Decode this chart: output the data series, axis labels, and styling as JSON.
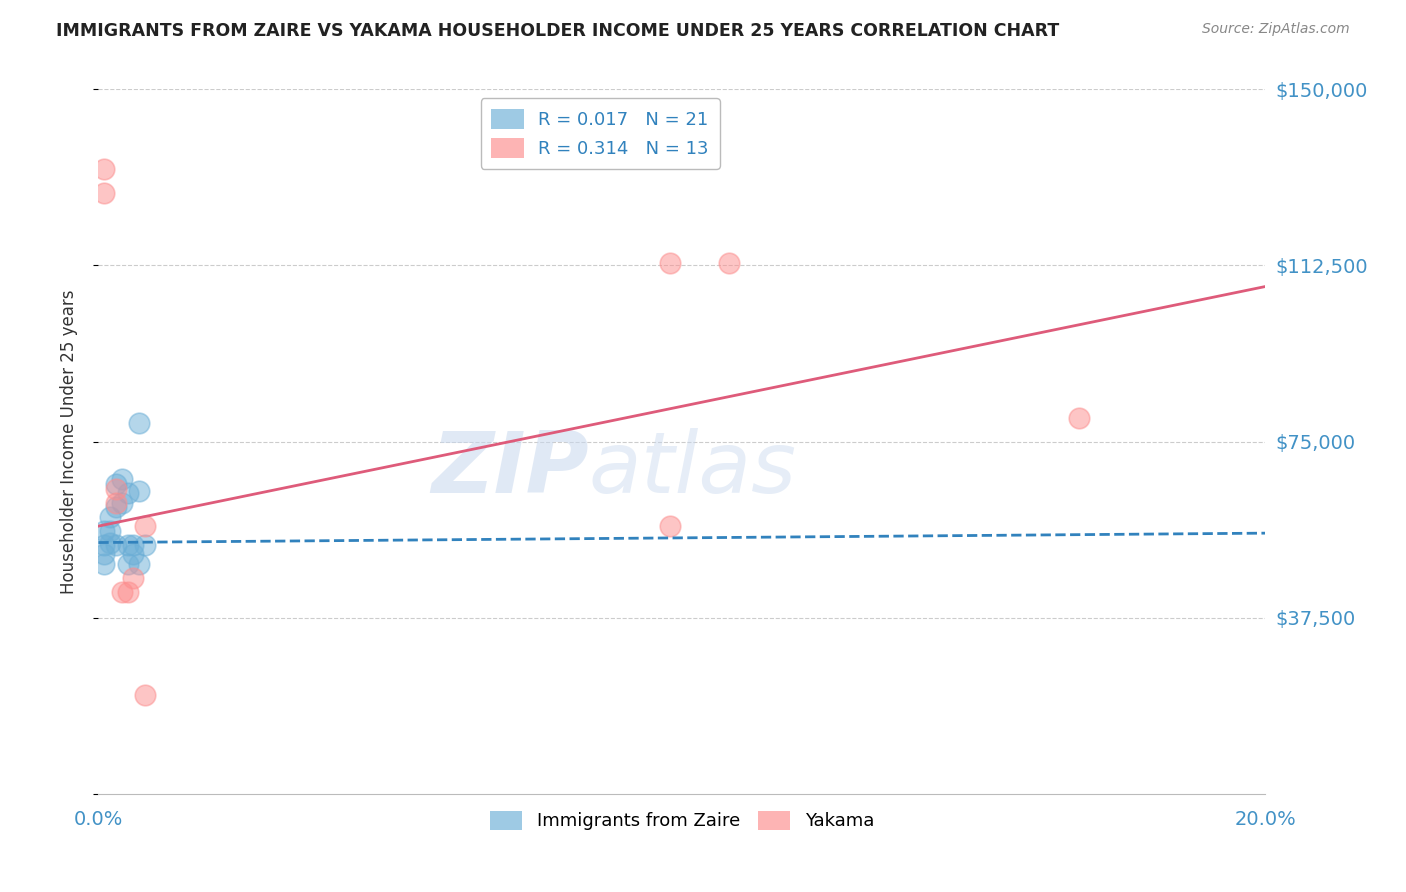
{
  "title": "IMMIGRANTS FROM ZAIRE VS YAKAMA HOUSEHOLDER INCOME UNDER 25 YEARS CORRELATION CHART",
  "source": "Source: ZipAtlas.com",
  "ylabel": "Householder Income Under 25 years",
  "xlim": [
    0.0,
    0.2
  ],
  "ylim": [
    0,
    150000
  ],
  "yticks": [
    0,
    37500,
    75000,
    112500,
    150000
  ],
  "ytick_labels": [
    "",
    "$37,500",
    "$75,000",
    "$112,500",
    "$150,000"
  ],
  "xtick_labels": [
    "0.0%",
    "20.0%"
  ],
  "xticks": [
    0.0,
    0.2
  ],
  "watermark_part1": "ZIP",
  "watermark_part2": "atlas",
  "legend_entries": [
    {
      "color": "#6baed6",
      "R": "0.017",
      "N": "21"
    },
    {
      "color": "#fc8d8d",
      "R": "0.314",
      "N": "13"
    }
  ],
  "legend_labels": [
    "Immigrants from Zaire",
    "Yakama"
  ],
  "zaire_points": [
    [
      0.001,
      53000
    ],
    [
      0.001,
      56000
    ],
    [
      0.001,
      49000
    ],
    [
      0.002,
      56000
    ],
    [
      0.001,
      51000
    ],
    [
      0.002,
      53500
    ],
    [
      0.002,
      59000
    ],
    [
      0.003,
      66000
    ],
    [
      0.003,
      61000
    ],
    [
      0.003,
      53000
    ],
    [
      0.004,
      67000
    ],
    [
      0.004,
      62000
    ],
    [
      0.005,
      64000
    ],
    [
      0.005,
      53000
    ],
    [
      0.005,
      49000
    ],
    [
      0.006,
      51000
    ],
    [
      0.006,
      53000
    ],
    [
      0.007,
      64500
    ],
    [
      0.007,
      49000
    ],
    [
      0.007,
      79000
    ],
    [
      0.008,
      53000
    ]
  ],
  "yakama_points": [
    [
      0.001,
      133000
    ],
    [
      0.001,
      128000
    ],
    [
      0.003,
      65000
    ],
    [
      0.003,
      62000
    ],
    [
      0.004,
      43000
    ],
    [
      0.005,
      43000
    ],
    [
      0.006,
      46000
    ],
    [
      0.008,
      57000
    ],
    [
      0.008,
      21000
    ],
    [
      0.098,
      113000
    ],
    [
      0.108,
      113000
    ],
    [
      0.098,
      57000
    ],
    [
      0.168,
      80000
    ]
  ],
  "blue_line_x": [
    0.0,
    0.2
  ],
  "blue_line_y": [
    53500,
    55500
  ],
  "pink_line_x": [
    0.0,
    0.2
  ],
  "pink_line_y": [
    57000,
    108000
  ],
  "grid_color": "#cccccc",
  "blue_color": "#6baed6",
  "pink_color": "#fc8d8d",
  "blue_line_color": "#3182bd",
  "pink_line_color": "#de5b7a",
  "title_color": "#222222",
  "ytick_color": "#4292c6",
  "xtick_color": "#4292c6"
}
